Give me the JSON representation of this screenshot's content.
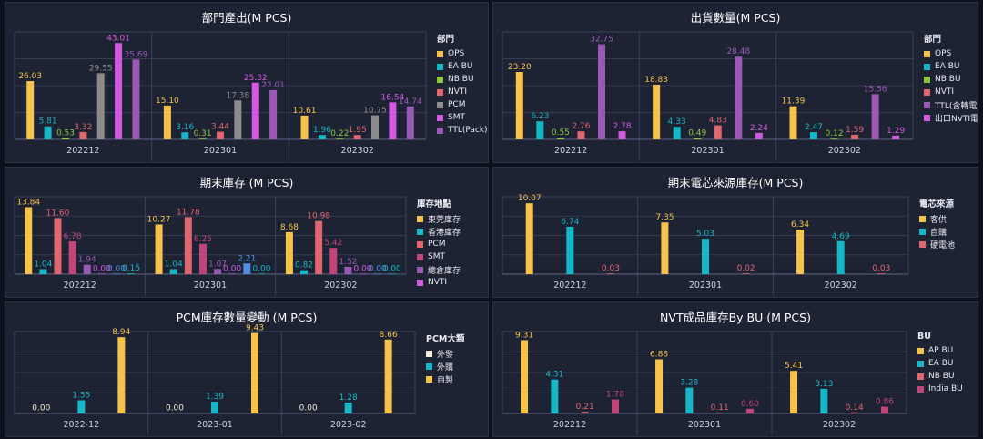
{
  "chart_data": [
    {
      "type": "bar",
      "title": "部門產出(M PCS)",
      "legend_title": "部門",
      "categories": [
        "202212",
        "202301",
        "202302"
      ],
      "ylim": [
        0,
        48
      ],
      "series": [
        {
          "name": "OPS",
          "color": "#f6c24a",
          "values": [
            26.03,
            15.1,
            10.61
          ]
        },
        {
          "name": "EA BU",
          "color": "#16b8c7",
          "values": [
            5.81,
            3.16,
            1.96
          ]
        },
        {
          "name": "NB BU",
          "color": "#8cc63f",
          "values": [
            0.53,
            0.31,
            0.22
          ]
        },
        {
          "name": "NVTI",
          "color": "#e06670",
          "values": [
            3.32,
            3.44,
            1.95
          ]
        },
        {
          "name": "PCM",
          "color": "#8c8c8c",
          "values": [
            29.55,
            17.38,
            10.75
          ]
        },
        {
          "name": "SMT",
          "color": "#d359e0",
          "values": [
            43.01,
            25.32,
            16.54
          ]
        },
        {
          "name": "TTL(Pack)",
          "color": "#9b59b6",
          "values": [
            35.69,
            22.01,
            14.74
          ]
        }
      ]
    },
    {
      "type": "bar",
      "title": "出貨數量(M PCS)",
      "legend_title": "部門",
      "categories": [
        "202212",
        "202301",
        "202302"
      ],
      "ylim": [
        0,
        37
      ],
      "series": [
        {
          "name": "OPS",
          "color": "#f6c24a",
          "values": [
            23.2,
            18.83,
            11.39
          ]
        },
        {
          "name": "EA BU",
          "color": "#16b8c7",
          "values": [
            6.23,
            4.33,
            2.47
          ]
        },
        {
          "name": "NB BU",
          "color": "#8cc63f",
          "values": [
            0.55,
            0.49,
            0.12
          ]
        },
        {
          "name": "NVTI",
          "color": "#e06670",
          "values": [
            2.76,
            4.83,
            1.59
          ]
        },
        {
          "name": "TTL(含轉電芯)",
          "color": "#9b59b6",
          "values": [
            32.75,
            28.48,
            15.56
          ]
        },
        {
          "name": "出口NVTI電芯",
          "color": "#d359e0",
          "values": [
            2.78,
            2.24,
            1.29
          ]
        }
      ]
    },
    {
      "type": "bar",
      "title": "期末庫存 (M PCS)",
      "legend_title": "庫存地點",
      "categories": [
        "202212",
        "202301",
        "202302"
      ],
      "ylim": [
        0,
        16
      ],
      "series": [
        {
          "name": "東莞庫存",
          "color": "#f6c24a",
          "values": [
            13.84,
            10.27,
            8.68
          ]
        },
        {
          "name": "香港庫存",
          "color": "#16b8c7",
          "values": [
            1.04,
            1.04,
            0.82
          ]
        },
        {
          "name": "PCM",
          "color": "#e06670",
          "values": [
            11.6,
            11.78,
            10.98
          ]
        },
        {
          "name": "SMT",
          "color": "#c2457a",
          "values": [
            6.78,
            6.25,
            5.42
          ]
        },
        {
          "name": "總倉庫存",
          "color": "#9b59b6",
          "values": [
            1.94,
            1.07,
            1.52
          ]
        },
        {
          "name": "NVTI",
          "color": "#d359e0",
          "values": [
            0.0,
            0.0,
            0.0
          ]
        },
        {
          "name": "",
          "color": "#4f8fe0",
          "values": [
            0.0,
            2.21,
            0.0
          ]
        },
        {
          "name": "",
          "color": "#16b8c7",
          "values": [
            0.15,
            0.0,
            0.0
          ]
        }
      ]
    },
    {
      "type": "bar",
      "title": "期末電芯來源庫存(M PCS)",
      "legend_title": "電芯來源",
      "categories": [
        "202212",
        "202301",
        "202302"
      ],
      "ylim": [
        0,
        11
      ],
      "series": [
        {
          "name": "客供",
          "color": "#f6c24a",
          "values": [
            10.07,
            7.35,
            6.34
          ]
        },
        {
          "name": "自購",
          "color": "#16b8c7",
          "values": [
            6.74,
            5.03,
            4.69
          ]
        },
        {
          "name": "硬電池",
          "color": "#e06670",
          "values": [
            0.03,
            0.02,
            0.03
          ]
        }
      ]
    },
    {
      "type": "bar",
      "title": "PCM庫存數量變動 (M PCS)",
      "legend_title": "PCM大類",
      "categories": [
        "2022-12",
        "2023-01",
        "2023-02"
      ],
      "ylim": [
        0,
        9.6
      ],
      "series": [
        {
          "name": "外發",
          "color": "#f2ecd9",
          "values": [
            0.0,
            0.0,
            0.0
          ]
        },
        {
          "name": "外購",
          "color": "#16b8c7",
          "values": [
            1.55,
            1.39,
            1.28
          ]
        },
        {
          "name": "自製",
          "color": "#f6c24a",
          "values": [
            8.94,
            9.43,
            8.66
          ]
        }
      ]
    },
    {
      "type": "bar",
      "title": "NVT成品庫存By BU (M PCS)",
      "legend_title": "BU",
      "categories": [
        "202212",
        "202301",
        "202302"
      ],
      "ylim": [
        0,
        10.4
      ],
      "series": [
        {
          "name": "AP BU",
          "color": "#f6c24a",
          "values": [
            9.31,
            6.88,
            5.41
          ]
        },
        {
          "name": "EA BU",
          "color": "#16b8c7",
          "values": [
            4.31,
            3.28,
            3.13
          ]
        },
        {
          "name": "NB BU",
          "color": "#e06670",
          "values": [
            0.21,
            0.11,
            0.14
          ]
        },
        {
          "name": "India BU",
          "color": "#c2457a",
          "values": [
            1.78,
            0.6,
            0.86
          ]
        }
      ]
    }
  ]
}
